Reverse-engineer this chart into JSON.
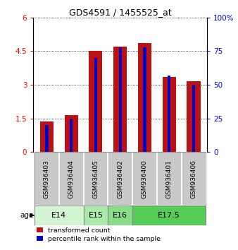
{
  "title": "GDS4591 / 1455525_at",
  "samples": [
    "GSM936403",
    "GSM936404",
    "GSM936405",
    "GSM936402",
    "GSM936400",
    "GSM936401",
    "GSM936406"
  ],
  "transformed_count": [
    1.35,
    1.65,
    4.5,
    4.7,
    4.85,
    3.35,
    3.15
  ],
  "percentile_rank_scaled": [
    1.2,
    1.5,
    4.2,
    4.68,
    4.68,
    3.42,
    3.0
  ],
  "age_groups": [
    {
      "label": "E14",
      "start": 0,
      "end": 2,
      "color": "#d4f5d4"
    },
    {
      "label": "E15",
      "start": 2,
      "end": 3,
      "color": "#aaeaaa"
    },
    {
      "label": "E16",
      "start": 3,
      "end": 4,
      "color": "#88dd88"
    },
    {
      "label": "E17.5",
      "start": 4,
      "end": 7,
      "color": "#55cc55"
    }
  ],
  "bar_color": "#bb1111",
  "pct_color": "#0000cc",
  "ylim_left": [
    0,
    6
  ],
  "ylim_right": [
    0,
    100
  ],
  "yticks_left": [
    0,
    1.5,
    3.0,
    4.5,
    6.0
  ],
  "ytick_labels_left": [
    "0",
    "1.5",
    "3",
    "4.5",
    "6"
  ],
  "yticks_right": [
    0,
    25,
    50,
    75,
    100
  ],
  "ytick_labels_right": [
    "0",
    "25",
    "50",
    "75",
    "100%"
  ],
  "bar_width": 0.55,
  "pct_bar_width": 0.12,
  "xtick_bg": "#c8c8c8",
  "legend_labels": [
    "transformed count",
    "percentile rank within the sample"
  ]
}
